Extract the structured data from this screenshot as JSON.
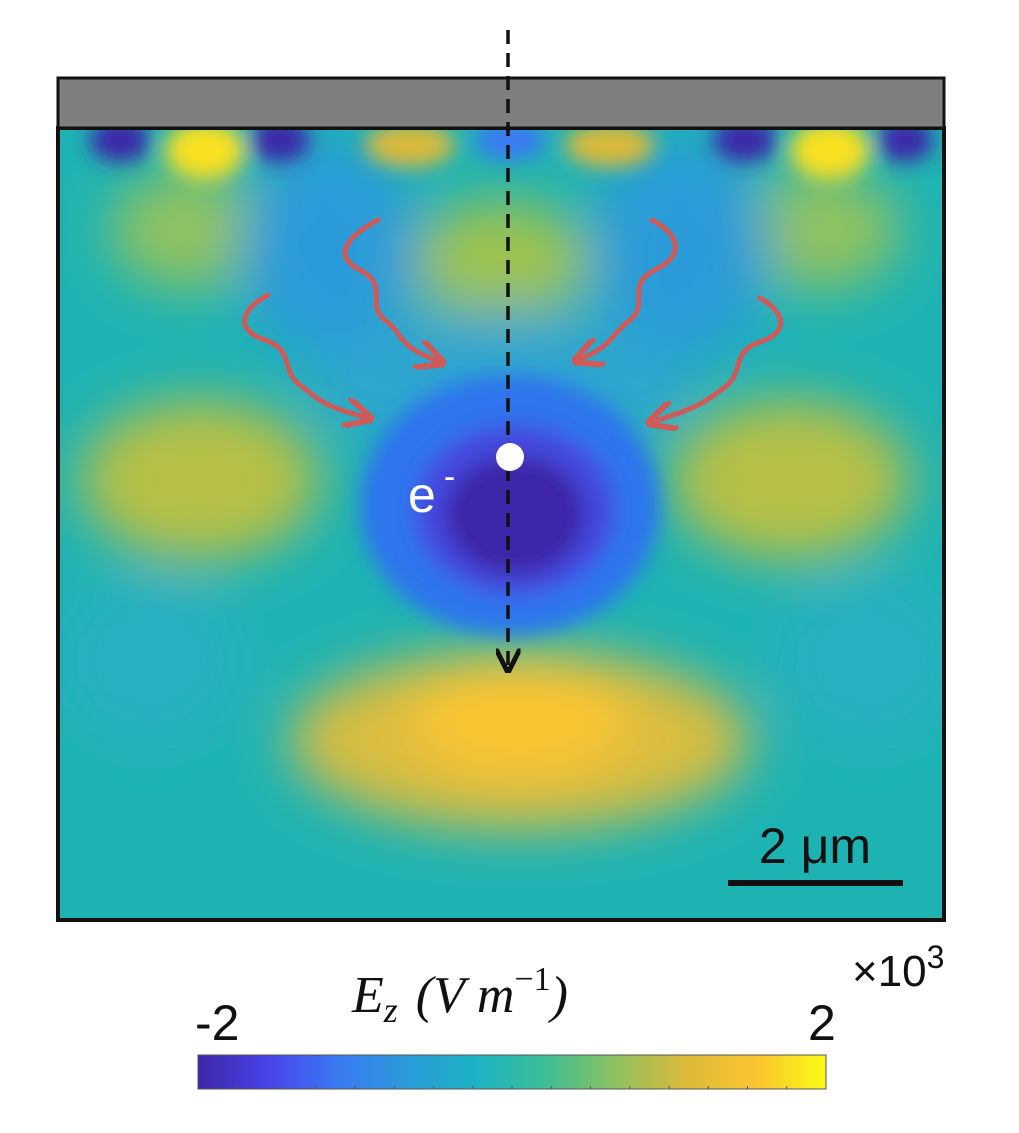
{
  "particle_label": "e",
  "particle_charge": "-",
  "scalebar": {
    "label": "2 μm"
  },
  "colorbar": {
    "label_quantity": "E",
    "label_subscript": "z",
    "label_units_open": "(V m",
    "label_units_exp": "−1",
    "label_units_close": ")",
    "min_label": "-2",
    "max_label": "2",
    "multiplier_label": "×10",
    "multiplier_exp": "3",
    "colormap": [
      "#3e26a8",
      "#4743e8",
      "#3b79f3",
      "#2a9bd8",
      "#1cb3c4",
      "#3ebe93",
      "#8fc260",
      "#dcba3a",
      "#fbc530",
      "#f9fb15"
    ]
  },
  "colors": {
    "background": "#1eb3b3",
    "plate": "#7f7f7f",
    "wave_arrow": "#cf5a5a",
    "trajectory": "#111111"
  }
}
